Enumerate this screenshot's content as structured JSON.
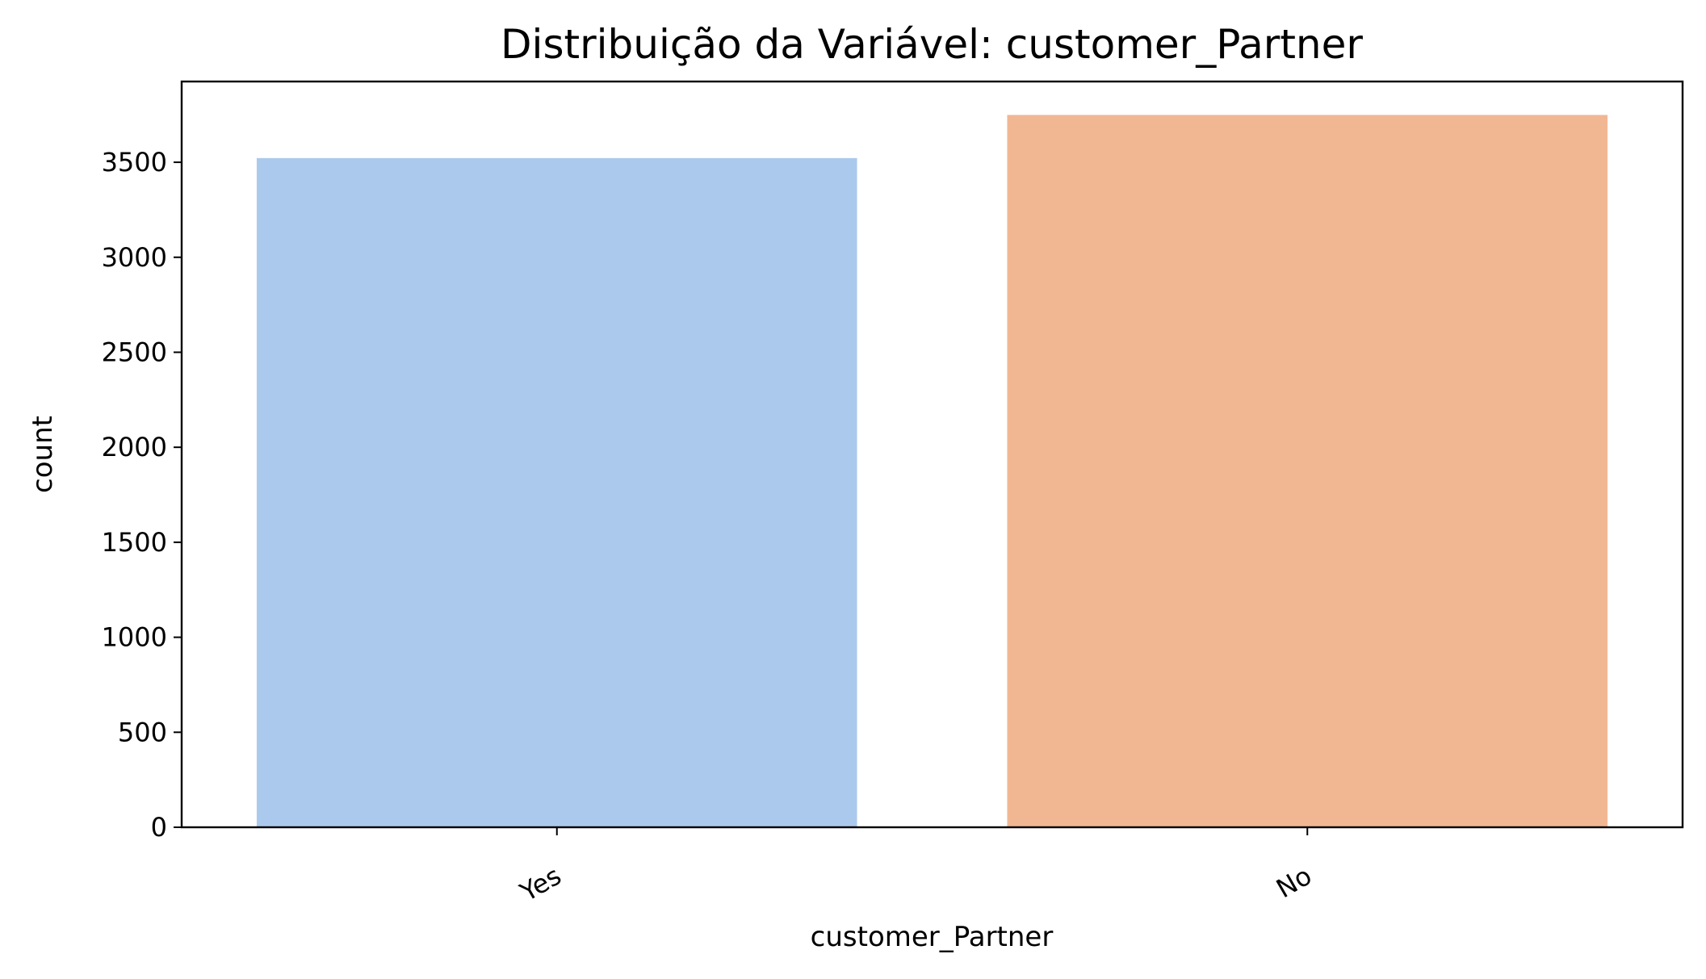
{
  "chart_data": {
    "type": "bar",
    "title": "Distribuição da Variável: customer_Partner",
    "xlabel": "customer_Partner",
    "ylabel": "count",
    "categories": [
      "Yes",
      "No"
    ],
    "values": [
      3522,
      3749
    ],
    "colors": [
      "#abc9ec",
      "#f1b793"
    ],
    "ylim": [
      0,
      3925
    ],
    "yticks": [
      0,
      500,
      1000,
      1500,
      2000,
      2500,
      3000,
      3500
    ],
    "grid": false,
    "legend": "none"
  }
}
